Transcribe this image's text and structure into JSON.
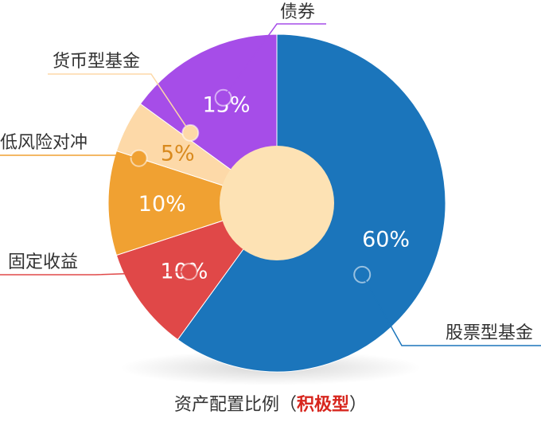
{
  "chart_data": {
    "type": "pie",
    "categories": [
      "股票型基金",
      "固定收益",
      "低风险对冲",
      "货币型基金",
      "债券"
    ],
    "values": [
      60,
      10,
      10,
      5,
      15
    ],
    "value_labels": [
      "60%",
      "10%",
      "10%",
      "5%",
      "15%"
    ],
    "colors": [
      "#1b75bb",
      "#e04848",
      "#f0a132",
      "#fdd9a8",
      "#a64de8"
    ],
    "value_label_colors": [
      "#ffffff",
      "#ffffff",
      "#ffffff",
      "#d98a1e",
      "#ffffff"
    ],
    "center_color": "#fde2b4",
    "caption_prefix": "资产配置比例（",
    "caption_highlight": "积极型",
    "caption_suffix": "）",
    "caption_highlight_color": "#d7261e"
  }
}
